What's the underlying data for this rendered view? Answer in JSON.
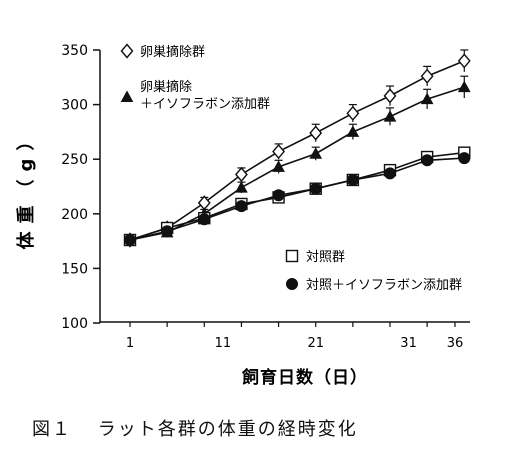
{
  "chart_data": {
    "type": "line",
    "xlabel": "飼育日数（日）",
    "ylabel": "体重（g）",
    "ylim": [
      100,
      350
    ],
    "yticks": [
      100,
      150,
      200,
      250,
      300,
      350
    ],
    "xticks": [
      1,
      11,
      21,
      31,
      36
    ],
    "xlim": [
      0,
      38
    ],
    "grid": false,
    "x": [
      1,
      5,
      9,
      13,
      17,
      21,
      25,
      29,
      33,
      37
    ],
    "series": [
      {
        "name": "卵巣摘除群",
        "marker": "open-diamond",
        "values": [
          176,
          187,
          210,
          236,
          257,
          274,
          292,
          308,
          326,
          340
        ],
        "errors": [
          3,
          3,
          5,
          6,
          7,
          8,
          8,
          9,
          9,
          10
        ]
      },
      {
        "name": "卵巣摘除＋イソフラボン添加群",
        "marker": "filled-triangle",
        "values": [
          176,
          183,
          200,
          224,
          243,
          255,
          275,
          289,
          305,
          316
        ],
        "errors": [
          3,
          3,
          4,
          5,
          6,
          6,
          7,
          8,
          9,
          10
        ]
      },
      {
        "name": "対照群",
        "marker": "open-square",
        "values": [
          176,
          187,
          196,
          209,
          215,
          223,
          231,
          240,
          252,
          256
        ],
        "errors": [
          2,
          2,
          3,
          3,
          3,
          3,
          3,
          4,
          4,
          5
        ]
      },
      {
        "name": "対照＋イソフラボン添加群",
        "marker": "filled-circle",
        "values": [
          176,
          184,
          195,
          207,
          217,
          223,
          231,
          237,
          249,
          251
        ],
        "errors": [
          2,
          2,
          3,
          3,
          3,
          3,
          3,
          4,
          4,
          5
        ]
      }
    ]
  },
  "caption": {
    "number": "図１",
    "text": "ラット各群の体重の経時変化"
  }
}
